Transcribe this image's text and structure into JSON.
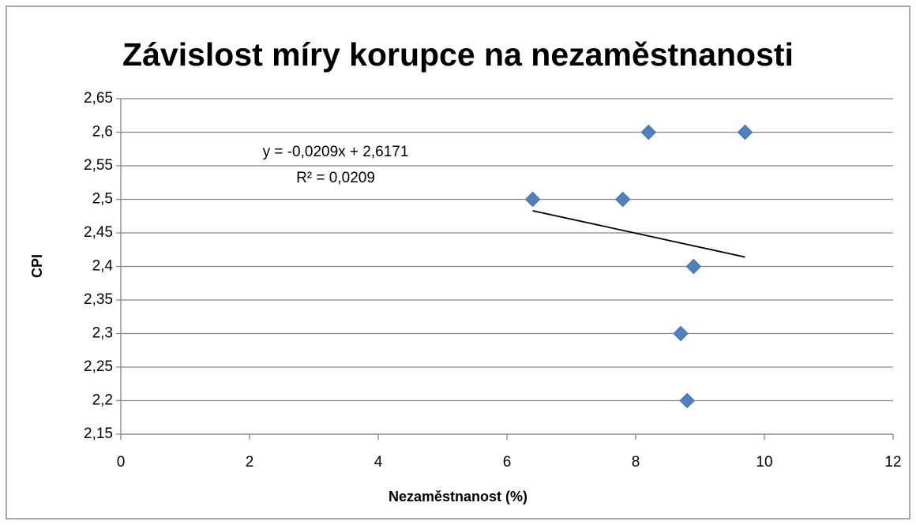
{
  "chart_data": {
    "type": "scatter",
    "title": "Závislost míry korupce na nezaměstnanosti",
    "xlabel": "Nezaměstnanost (%)",
    "ylabel": "CPI",
    "series": [
      {
        "color": "#4f81bd",
        "x": [
          8.2,
          9.7,
          6.4,
          7.8,
          8.9,
          8.7,
          8.8
        ],
        "values": [
          2.6,
          2.6,
          2.5,
          2.5,
          2.4,
          2.3,
          2.2
        ]
      }
    ],
    "trendline": {
      "color": "#000000",
      "x": [
        6.4,
        9.7
      ],
      "values": [
        2.483,
        2.414
      ]
    },
    "annotations": [
      "y = -0,0209x + 2,6171",
      "R² = 0,0209"
    ],
    "xlim": [
      0,
      12
    ],
    "xticks": [
      0,
      2,
      4,
      6,
      8,
      10,
      12
    ],
    "ylim": [
      2.15,
      2.65
    ],
    "yticks": [
      {
        "value": 2.15,
        "label": "2,15"
      },
      {
        "value": 2.2,
        "label": "2,2"
      },
      {
        "value": 2.25,
        "label": "2,25"
      },
      {
        "value": 2.3,
        "label": "2,3"
      },
      {
        "value": 2.35,
        "label": "2,35"
      },
      {
        "value": 2.4,
        "label": "2,4"
      },
      {
        "value": 2.45,
        "label": "2,45"
      },
      {
        "value": 2.5,
        "label": "2,5"
      },
      {
        "value": 2.55,
        "label": "2,55"
      },
      {
        "value": 2.6,
        "label": "2,6"
      },
      {
        "value": 2.65,
        "label": "2,65"
      }
    ],
    "grid": true
  }
}
